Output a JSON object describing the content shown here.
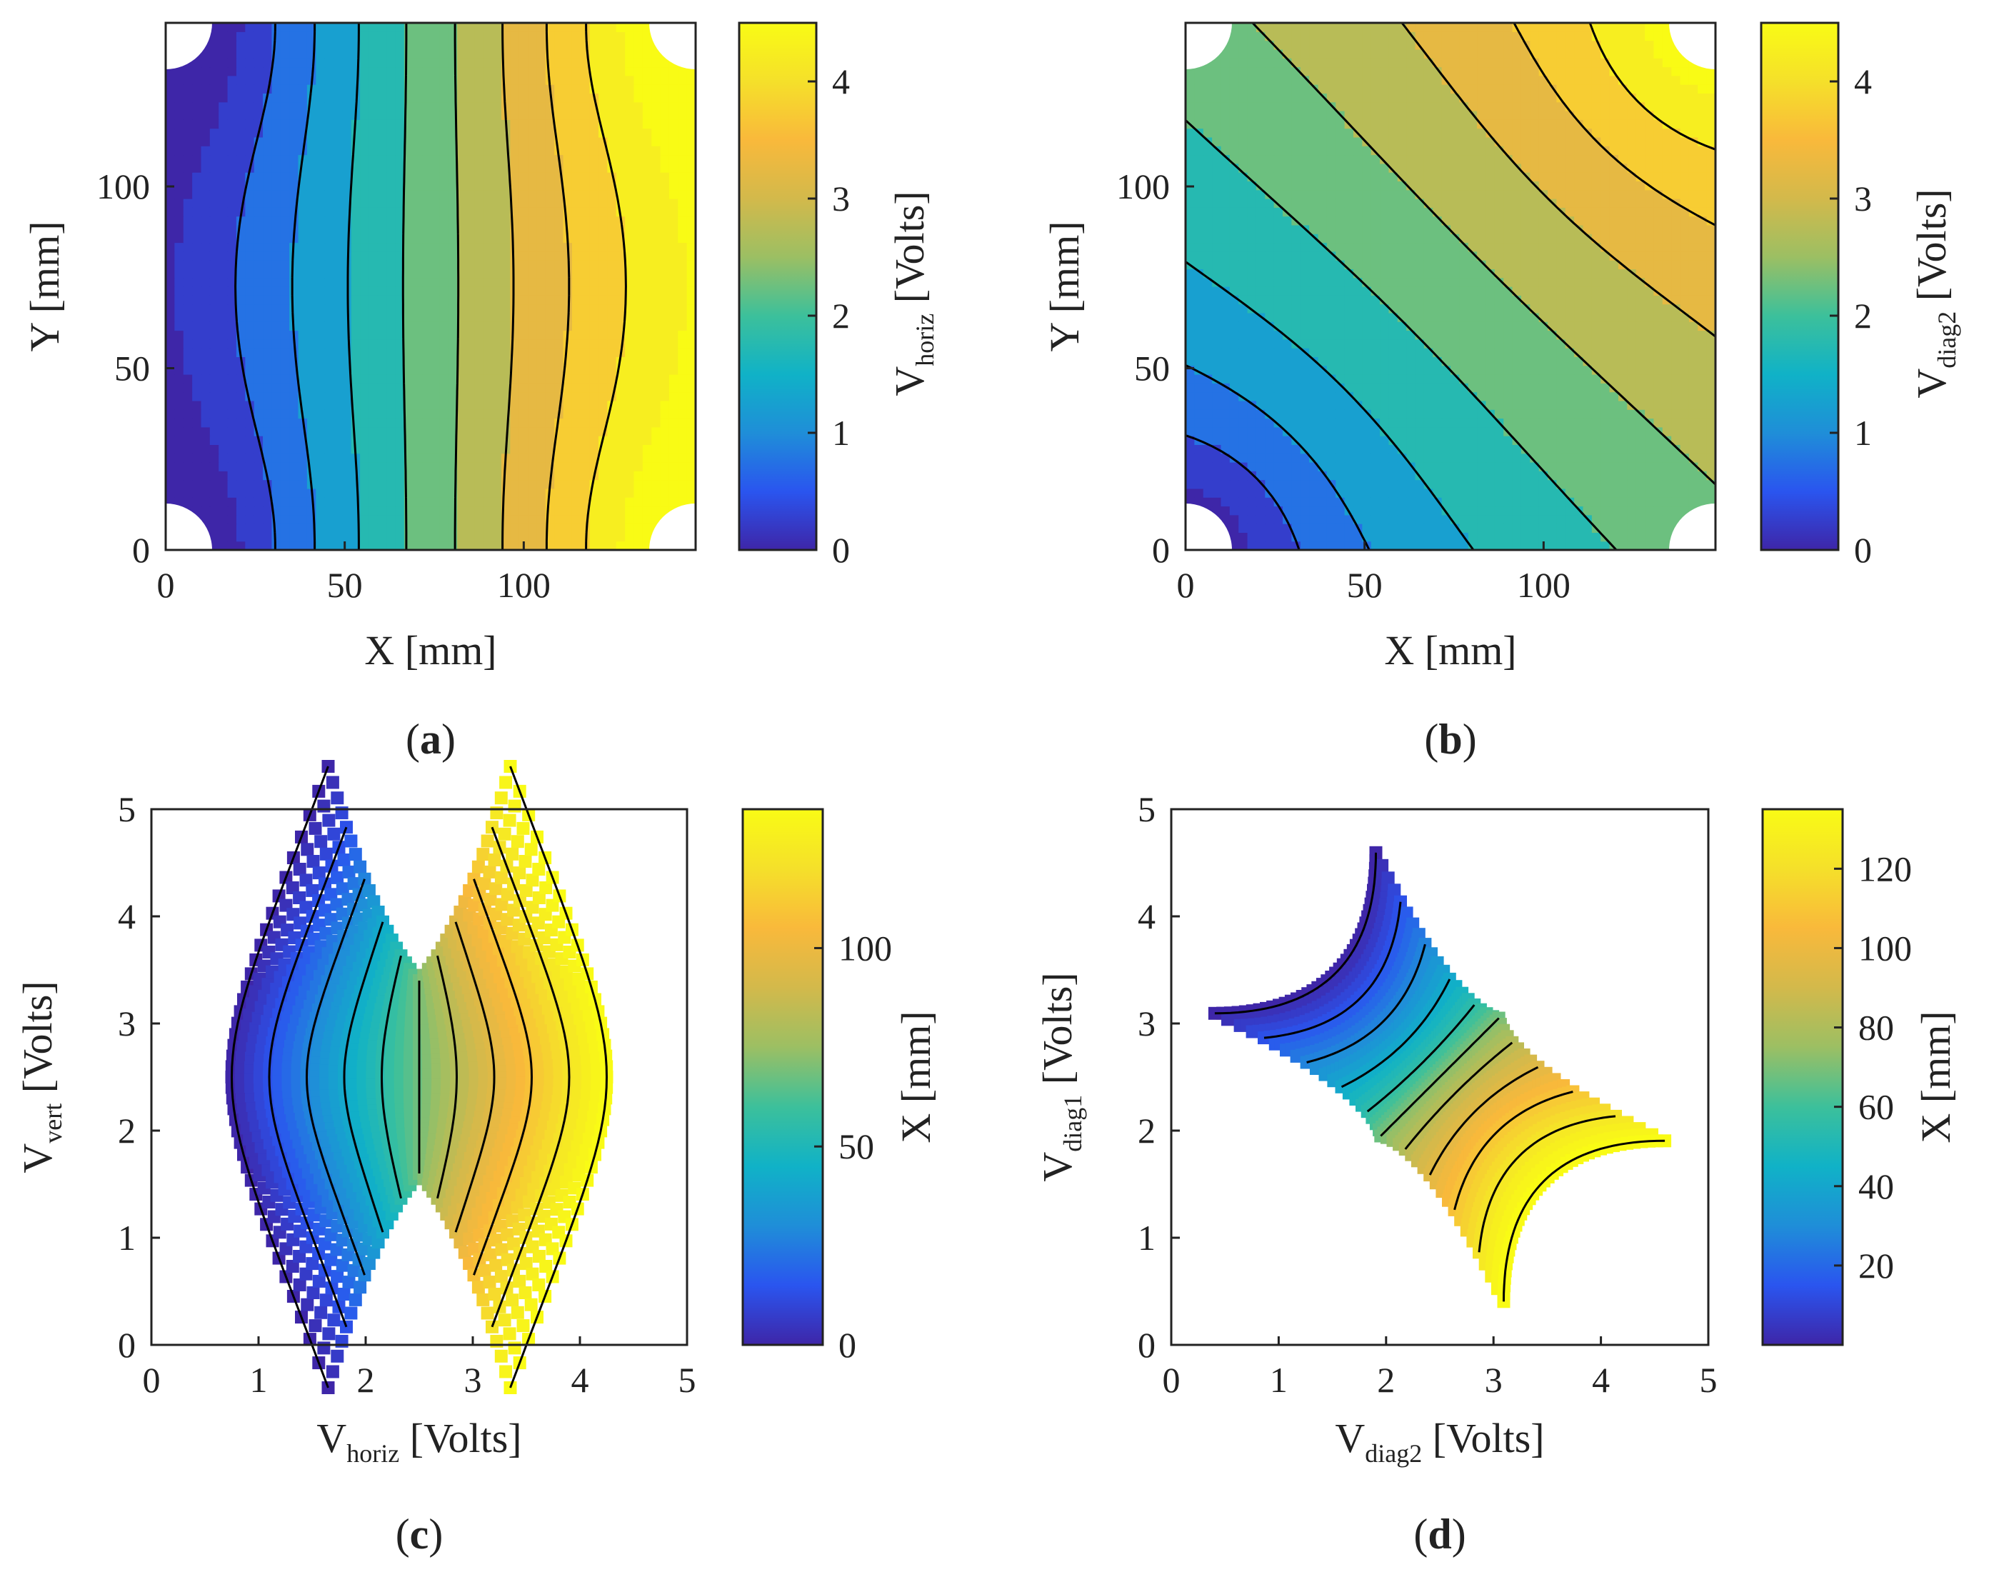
{
  "colormap": [
    "#3e26a8",
    "#2a55ef",
    "#1f8ed8",
    "#10b2c7",
    "#3cc09b",
    "#9cbf63",
    "#d3b94b",
    "#f9b93b",
    "#f5e02a",
    "#f9fb15"
  ],
  "chart_data": [
    {
      "id": "a",
      "type": "heatmap",
      "panel_label": "a",
      "xlabel": "X [mm]",
      "ylabel": "Y [mm]",
      "xlim": [
        0,
        148
      ],
      "ylim": [
        0,
        145
      ],
      "xticks": [
        "0",
        "50",
        "100"
      ],
      "yticks": [
        "0",
        "50",
        "100"
      ],
      "colorbar_label_main": "V",
      "colorbar_label_sub": "horiz",
      "colorbar_label_tail": " [Volts]",
      "colorbar_lim": [
        0,
        4.5
      ],
      "colorbar_ticks": [
        "0",
        "1",
        "2",
        "3",
        "4"
      ],
      "field": "horizontal gradient V = 2.5 + 2.5*(x-74)/74 with enhancement near corners",
      "contour_levels": [
        0.5,
        1,
        1.5,
        2,
        2.5,
        3,
        3.5,
        4
      ]
    },
    {
      "id": "b",
      "type": "heatmap",
      "panel_label": "b",
      "xlabel": "X [mm]",
      "ylabel": "Y [mm]",
      "xlim": [
        0,
        148
      ],
      "ylim": [
        0,
        145
      ],
      "xticks": [
        "0",
        "50",
        "100"
      ],
      "yticks": [
        "0",
        "50",
        "100"
      ],
      "colorbar_label_main": "V",
      "colorbar_label_sub": "diag2",
      "colorbar_label_tail": " [Volts]",
      "colorbar_lim": [
        0,
        4.5
      ],
      "colorbar_ticks": [
        "0",
        "1",
        "2",
        "3",
        "4"
      ],
      "field": "diagonal gradient from bottom-left (low) to top-right (high)",
      "contour_levels": [
        0.5,
        1,
        1.5,
        2,
        2.5,
        3,
        3.5,
        4
      ]
    },
    {
      "id": "c",
      "type": "scatter",
      "panel_label": "c",
      "xlabel_main": "V",
      "xlabel_sub": "horiz",
      "xlabel_tail": " [Volts]",
      "ylabel_main": "V",
      "ylabel_sub": "vert",
      "ylabel_tail": " [Volts]",
      "xlim": [
        0,
        5
      ],
      "ylim": [
        0,
        5
      ],
      "xticks": [
        "0",
        "1",
        "2",
        "3",
        "4",
        "5"
      ],
      "yticks": [
        "0",
        "1",
        "2",
        "3",
        "4",
        "5"
      ],
      "colorbar_label": "X [mm]",
      "colorbar_lim": [
        0,
        135
      ],
      "colorbar_ticks": [
        "0",
        "50",
        "100"
      ],
      "colorbar_tick_values": [
        0,
        50,
        100
      ]
    },
    {
      "id": "d",
      "type": "scatter",
      "panel_label": "d",
      "xlabel_main": "V",
      "xlabel_sub": "diag2",
      "xlabel_tail": " [Volts]",
      "ylabel_main": "V",
      "ylabel_sub": "diag1",
      "ylabel_tail": " [Volts]",
      "xlim": [
        0,
        5
      ],
      "ylim": [
        0,
        5
      ],
      "xticks": [
        "0",
        "1",
        "2",
        "3",
        "4",
        "5"
      ],
      "yticks": [
        "0",
        "1",
        "2",
        "3",
        "4",
        "5"
      ],
      "colorbar_label": "X [mm]",
      "colorbar_lim": [
        0,
        135
      ],
      "colorbar_ticks": [
        "20",
        "40",
        "60",
        "80",
        "100",
        "120"
      ],
      "colorbar_tick_values": [
        20,
        40,
        60,
        80,
        100,
        120
      ]
    }
  ]
}
